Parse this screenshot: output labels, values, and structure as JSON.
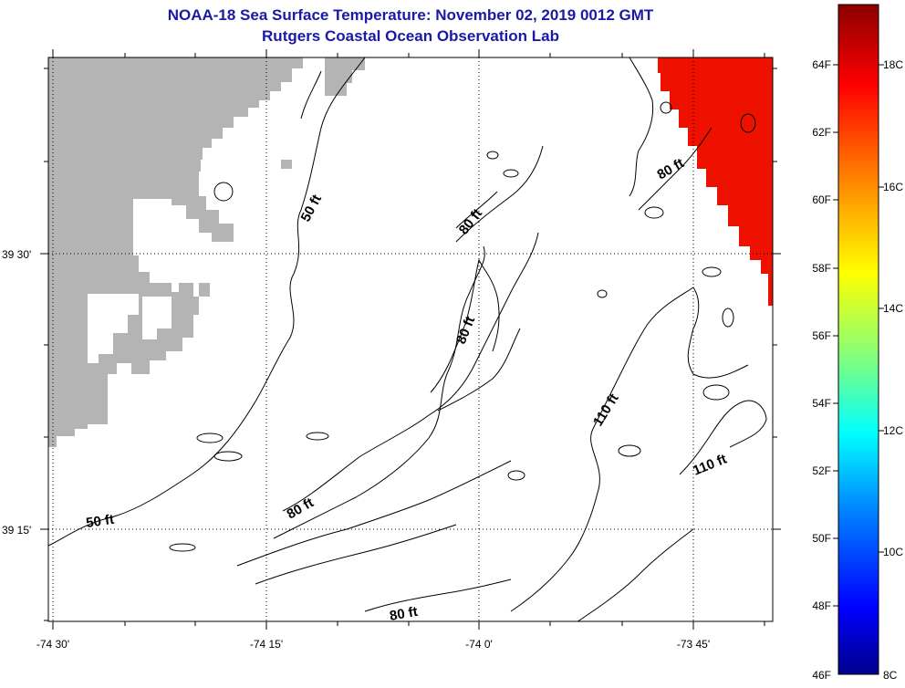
{
  "header": {
    "title": "NOAA-18 Sea Surface Temperature:  November 02, 2019 0012 GMT",
    "subtitle": "Rutgers Coastal Ocean Observation Lab"
  },
  "map": {
    "lon_labels": [
      "-74 30'",
      "-74 15'",
      "-74 0'",
      "-73 45'"
    ],
    "lat_labels": [
      "39 30'",
      "39 15'"
    ],
    "land_color": "#b4b4b4",
    "contour_color": "#000000",
    "contour_labels": [
      "50 ft",
      "50 ft",
      "80 ft",
      "80 ft",
      "80 ft",
      "80 ft",
      "80 ft",
      "110 ft",
      "110 ft"
    ],
    "sst_patch_color": "#ee1100"
  },
  "colorbar": {
    "fahrenheit_labels": [
      "64F",
      "62F",
      "60F",
      "58F",
      "56F",
      "54F",
      "52F",
      "50F",
      "48F",
      "46F"
    ],
    "celsius_labels": [
      "18C",
      "16C",
      "14C",
      "12C",
      "10C",
      "8C"
    ],
    "range_c": [
      8,
      19.2
    ],
    "gradient_colors": [
      "#8b0000",
      "#ff0000",
      "#ff8c00",
      "#ffff00",
      "#7fff7f",
      "#00ffff",
      "#007fff",
      "#0000ff",
      "#00008b"
    ]
  }
}
